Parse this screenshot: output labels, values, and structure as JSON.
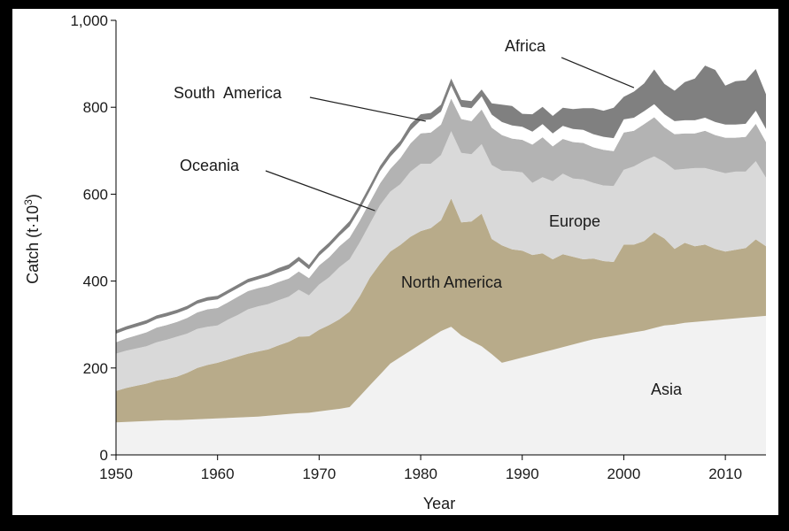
{
  "chart_data": {
    "type": "area",
    "stacked": true,
    "xlabel": "Year",
    "ylabel": "Catch (t·10³)",
    "ylabel_main": "Catch (t·10",
    "ylabel_sup": "3",
    "ylabel_end": ")",
    "xlim": [
      1950,
      2014
    ],
    "ylim": [
      0,
      1000
    ],
    "xticks": [
      1950,
      1960,
      1970,
      1980,
      1990,
      2000,
      2010
    ],
    "yticks": [
      0,
      200,
      400,
      600,
      800,
      1000
    ],
    "ytick_labels": [
      "0",
      "200",
      "400",
      "600",
      "800",
      "1,000"
    ],
    "grid": false,
    "legend": "none (direct labels)",
    "years": [
      1950,
      1951,
      1952,
      1953,
      1954,
      1955,
      1956,
      1957,
      1958,
      1959,
      1960,
      1961,
      1962,
      1963,
      1964,
      1965,
      1966,
      1967,
      1968,
      1969,
      1970,
      1971,
      1972,
      1973,
      1974,
      1975,
      1976,
      1977,
      1978,
      1979,
      1980,
      1981,
      1982,
      1983,
      1984,
      1985,
      1986,
      1987,
      1988,
      1989,
      1990,
      1991,
      1992,
      1993,
      1994,
      1995,
      1996,
      1997,
      1998,
      1999,
      2000,
      2001,
      2002,
      2003,
      2004,
      2005,
      2006,
      2007,
      2008,
      2009,
      2010,
      2011,
      2012,
      2013,
      2014
    ],
    "series": [
      {
        "name": "Asia",
        "color": "#f2f2f2",
        "values": [
          75,
          76,
          77,
          78,
          79,
          80,
          80,
          81,
          82,
          83,
          84,
          85,
          86,
          87,
          88,
          90,
          92,
          94,
          96,
          97,
          100,
          103,
          106,
          110,
          135,
          160,
          185,
          210,
          225,
          240,
          255,
          270,
          285,
          295,
          275,
          262,
          250,
          232,
          212,
          218,
          224,
          230,
          236,
          242,
          248,
          254,
          260,
          266,
          270,
          274,
          278,
          282,
          286,
          292,
          298,
          300,
          304,
          306,
          308,
          310,
          312,
          314,
          316,
          318,
          320
        ]
      },
      {
        "name": "North America",
        "color": "#b8ab8a",
        "values": [
          72,
          78,
          82,
          86,
          92,
          95,
          100,
          108,
          118,
          124,
          128,
          134,
          140,
          146,
          150,
          153,
          160,
          166,
          176,
          176,
          188,
          196,
          206,
          220,
          230,
          248,
          255,
          258,
          258,
          262,
          260,
          252,
          255,
          295,
          260,
          275,
          305,
          265,
          270,
          255,
          246,
          230,
          228,
          208,
          214,
          202,
          190,
          186,
          176,
          170,
          206,
          202,
          206,
          220,
          200,
          174,
          184,
          174,
          176,
          164,
          156,
          158,
          160,
          178,
          160
        ]
      },
      {
        "name": "Europe",
        "color": "#d9d9d9",
        "values": [
          86,
          86,
          86,
          86,
          88,
          90,
          92,
          90,
          90,
          88,
          86,
          92,
          96,
          102,
          104,
          104,
          104,
          104,
          108,
          94,
          104,
          110,
          120,
          120,
          124,
          124,
          135,
          138,
          140,
          150,
          155,
          148,
          150,
          155,
          160,
          155,
          160,
          170,
          172,
          180,
          180,
          166,
          175,
          180,
          185,
          180,
          184,
          174,
          174,
          175,
          172,
          180,
          185,
          175,
          176,
          182,
          170,
          180,
          176,
          180,
          180,
          180,
          176,
          180,
          158
        ]
      },
      {
        "name": "Oceania",
        "color": "#b3b3b3",
        "values": [
          26,
          28,
          30,
          32,
          34,
          34,
          34,
          36,
          38,
          40,
          40,
          40,
          42,
          42,
          42,
          42,
          42,
          42,
          42,
          40,
          44,
          46,
          48,
          50,
          50,
          50,
          50,
          52,
          60,
          65,
          70,
          72,
          70,
          75,
          78,
          76,
          80,
          86,
          82,
          75,
          75,
          88,
          92,
          80,
          80,
          84,
          84,
          82,
          82,
          80,
          86,
          82,
          84,
          90,
          80,
          82,
          82,
          80,
          86,
          82,
          82,
          78,
          80,
          86,
          82
        ]
      },
      {
        "name": "South America",
        "color": "#ffffff",
        "values": [
          20,
          20,
          20,
          20,
          20,
          20,
          20,
          20,
          20,
          20,
          20,
          20,
          20,
          20,
          20,
          22,
          22,
          22,
          24,
          20,
          22,
          24,
          24,
          26,
          26,
          26,
          28,
          28,
          28,
          30,
          30,
          30,
          30,
          30,
          28,
          30,
          30,
          30,
          30,
          30,
          30,
          30,
          30,
          30,
          30,
          30,
          30,
          30,
          30,
          30,
          30,
          30,
          30,
          30,
          30,
          30,
          30,
          30,
          30,
          30,
          30,
          30,
          30,
          30,
          30
        ]
      },
      {
        "name": "Africa",
        "color": "#808080",
        "values": [
          8,
          8,
          8,
          8,
          8,
          8,
          8,
          8,
          8,
          8,
          8,
          8,
          8,
          8,
          8,
          8,
          10,
          10,
          10,
          10,
          10,
          10,
          10,
          12,
          12,
          12,
          12,
          12,
          12,
          14,
          14,
          15,
          16,
          16,
          16,
          16,
          16,
          26,
          40,
          45,
          30,
          40,
          40,
          40,
          42,
          46,
          50,
          60,
          60,
          70,
          52,
          60,
          64,
          80,
          70,
          70,
          88,
          96,
          120,
          120,
          90,
          100,
          100,
          96,
          80
        ]
      }
    ],
    "annotations": [
      {
        "text": "Africa",
        "kind": "callout",
        "points_to": {
          "x": 2001,
          "y": 845
        }
      },
      {
        "text": "South  America",
        "kind": "callout",
        "points_to": {
          "x": 1980.5,
          "y": 768
        }
      },
      {
        "text": "Oceania",
        "kind": "callout",
        "points_to": {
          "x": 1975.5,
          "y": 562
        }
      },
      {
        "text": "Europe",
        "kind": "inline"
      },
      {
        "text": "North America",
        "kind": "inline"
      },
      {
        "text": "Asia",
        "kind": "inline"
      }
    ]
  }
}
